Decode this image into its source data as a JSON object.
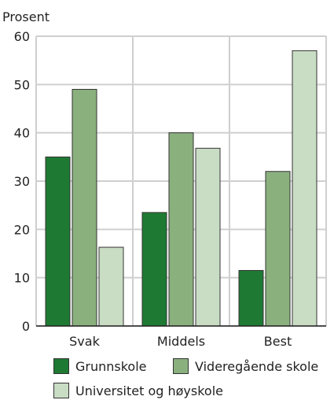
{
  "chart_data": {
    "type": "bar",
    "title": "",
    "ylabel": "Prosent",
    "xlabel": "",
    "ylim": [
      0,
      60
    ],
    "yticks": [
      0,
      10,
      20,
      30,
      40,
      50,
      60
    ],
    "categories": [
      "Svak",
      "Middels",
      "Best"
    ],
    "series": [
      {
        "name": "Grunnskole",
        "color": "#1e7a33",
        "values": [
          35,
          23.5,
          11.5
        ]
      },
      {
        "name": "Videregående skole",
        "color": "#8ab07e",
        "values": [
          49,
          40,
          32
        ]
      },
      {
        "name": "Universitet og høyskole",
        "color": "#c9dcc4",
        "values": [
          16.3,
          36.8,
          57
        ]
      }
    ],
    "grid": {
      "horizontal": true,
      "vertical": true
    },
    "legend_position": "bottom"
  }
}
